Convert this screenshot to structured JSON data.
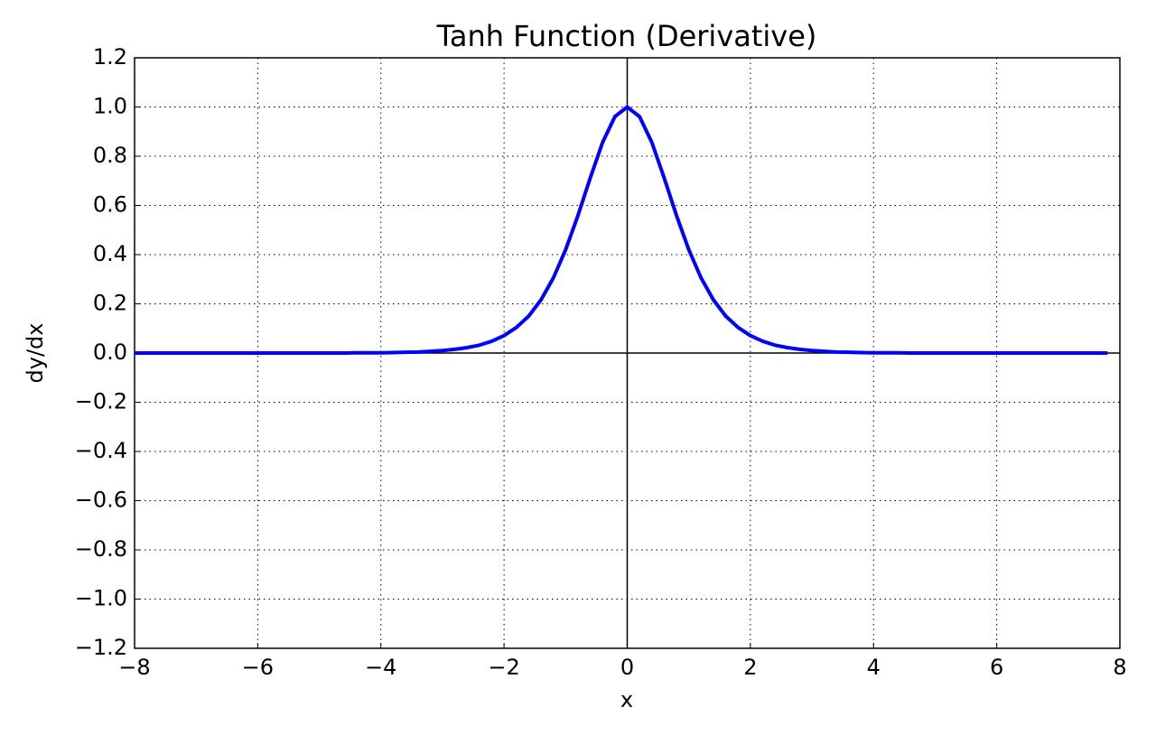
{
  "chart_data": {
    "type": "line",
    "title": "Tanh Function (Derivative)",
    "x_label": "x",
    "y_label": "dy/dx",
    "x": [
      -8,
      -7.8,
      -7.6,
      -7.4,
      -7.2,
      -7,
      -6.8,
      -6.6,
      -6.4,
      -6.2,
      -6,
      -5.8,
      -5.6,
      -5.4,
      -5.2,
      -5,
      -4.8,
      -4.6,
      -4.4,
      -4.2,
      -4,
      -3.8,
      -3.6,
      -3.4,
      -3.2,
      -3,
      -2.8,
      -2.6,
      -2.4,
      -2.2,
      -2,
      -1.8,
      -1.6,
      -1.4,
      -1.2,
      -1,
      -0.8,
      -0.6,
      -0.4,
      -0.2,
      0,
      0.2,
      0.4,
      0.6,
      0.8,
      1,
      1.2,
      1.4,
      1.6,
      1.8,
      2,
      2.2,
      2.4,
      2.6,
      2.8,
      3,
      3.2,
      3.4,
      3.6,
      3.8,
      4,
      4.2,
      4.4,
      4.6,
      4.8,
      5,
      5.2,
      5.4,
      5.6,
      5.8,
      6,
      6.2,
      6.4,
      6.6,
      6.8,
      7,
      7.2,
      7.4,
      7.6,
      7.8
    ],
    "series": [
      {
        "color": "#0000ff",
        "values": [
          0,
          0,
          0,
          0,
          0,
          0,
          0,
          0,
          0,
          0,
          0,
          0,
          0,
          0,
          0,
          0,
          0,
          0,
          0.001,
          0.001,
          0.001,
          0.002,
          0.003,
          0.004,
          0.007,
          0.01,
          0.015,
          0.022,
          0.032,
          0.048,
          0.071,
          0.104,
          0.15,
          0.216,
          0.305,
          0.42,
          0.559,
          0.712,
          0.856,
          0.961,
          1,
          0.961,
          0.856,
          0.712,
          0.559,
          0.42,
          0.305,
          0.216,
          0.15,
          0.104,
          0.071,
          0.048,
          0.032,
          0.022,
          0.015,
          0.01,
          0.007,
          0.004,
          0.003,
          0.002,
          0.001,
          0.001,
          0.001,
          0,
          0,
          0,
          0,
          0,
          0,
          0,
          0,
          0,
          0,
          0,
          0,
          0,
          0,
          0,
          0,
          0
        ]
      }
    ],
    "xlim": [
      -8,
      8
    ],
    "ylim": [
      -1.2,
      1.2
    ],
    "xticks": [
      {
        "value": -8,
        "label": "−8"
      },
      {
        "value": -6,
        "label": "−6"
      },
      {
        "value": -4,
        "label": "−4"
      },
      {
        "value": -2,
        "label": "−2"
      },
      0,
      2,
      4,
      6,
      8
    ],
    "yticks": [
      {
        "value": -1.2,
        "label": "−1.2"
      },
      {
        "value": -1,
        "label": "−1.0"
      },
      {
        "value": -0.8,
        "label": "−0.8"
      },
      {
        "value": -0.6,
        "label": "−0.6"
      },
      {
        "value": -0.4,
        "label": "−0.4"
      },
      {
        "value": -0.2,
        "label": "−0.2"
      },
      {
        "value": 0,
        "label": "0.0"
      },
      0.2,
      0.4,
      0.6,
      0.8,
      {
        "value": 1,
        "label": "1.0"
      },
      1.2
    ],
    "grid": true
  }
}
